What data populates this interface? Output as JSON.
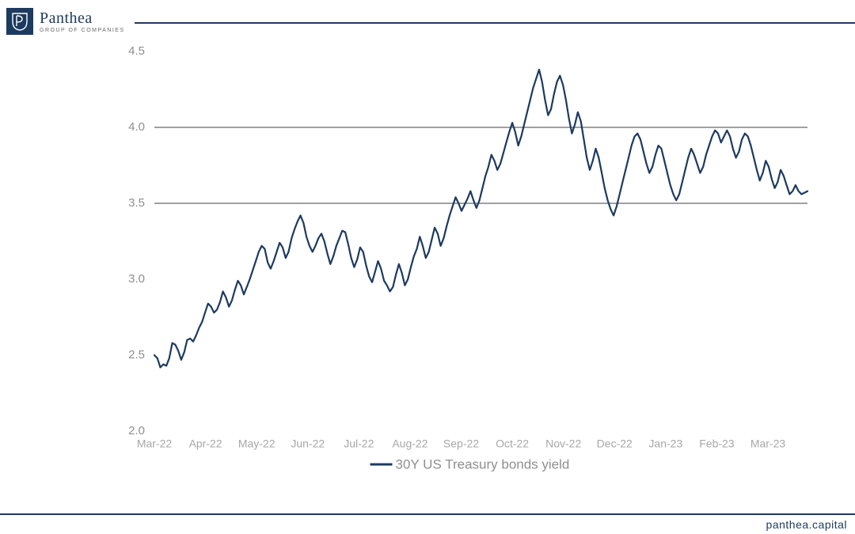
{
  "brand": {
    "name": "Panthea",
    "subtitle": "GROUP OF COMPANIES",
    "footer": "panthea.capital",
    "brand_color": "#1d3a5f"
  },
  "chart": {
    "type": "line",
    "series_name": "30Y US Treasury bonds yield",
    "line_color": "#1d3a5f",
    "line_width": 2.2,
    "background_color": "#ffffff",
    "axis_label_color": "#8f8f8f",
    "xaxis_label_color": "#a7a7a7",
    "reference_line_color": "#808080",
    "reference_line_width": 1.4,
    "ylim": [
      2.0,
      4.5
    ],
    "ytick_step": 0.5,
    "ytick_labels": [
      "2.0",
      "2.5",
      "3.0",
      "3.5",
      "4.0",
      "4.5"
    ],
    "reference_levels": [
      3.5,
      4.0
    ],
    "xtick_labels": [
      "Mar-22",
      "Apr-22",
      "May-22",
      "Jun-22",
      "Jul-22",
      "Aug-22",
      "Sep-22",
      "Oct-22",
      "Nov-22",
      "Dec-22",
      "Jan-23",
      "Feb-23",
      "Mar-23"
    ],
    "label_fontsize": 15,
    "legend_fontsize": 17,
    "data": [
      2.5,
      2.48,
      2.42,
      2.44,
      2.43,
      2.48,
      2.58,
      2.57,
      2.53,
      2.47,
      2.52,
      2.6,
      2.61,
      2.59,
      2.63,
      2.68,
      2.72,
      2.78,
      2.84,
      2.82,
      2.78,
      2.8,
      2.85,
      2.92,
      2.88,
      2.82,
      2.86,
      2.93,
      2.99,
      2.96,
      2.9,
      2.95,
      3.0,
      3.06,
      3.12,
      3.18,
      3.22,
      3.2,
      3.11,
      3.07,
      3.12,
      3.18,
      3.24,
      3.21,
      3.14,
      3.18,
      3.27,
      3.33,
      3.38,
      3.42,
      3.37,
      3.28,
      3.22,
      3.18,
      3.22,
      3.27,
      3.3,
      3.25,
      3.17,
      3.1,
      3.15,
      3.22,
      3.27,
      3.32,
      3.31,
      3.23,
      3.14,
      3.08,
      3.13,
      3.21,
      3.18,
      3.09,
      3.02,
      2.98,
      3.05,
      3.12,
      3.07,
      2.99,
      2.96,
      2.92,
      2.95,
      3.03,
      3.1,
      3.04,
      2.96,
      3.0,
      3.08,
      3.15,
      3.2,
      3.28,
      3.22,
      3.14,
      3.18,
      3.26,
      3.34,
      3.3,
      3.22,
      3.27,
      3.35,
      3.42,
      3.48,
      3.54,
      3.5,
      3.45,
      3.49,
      3.53,
      3.58,
      3.52,
      3.47,
      3.52,
      3.6,
      3.68,
      3.74,
      3.82,
      3.78,
      3.72,
      3.76,
      3.83,
      3.9,
      3.97,
      4.03,
      3.97,
      3.88,
      3.94,
      4.02,
      4.1,
      4.18,
      4.26,
      4.32,
      4.38,
      4.3,
      4.18,
      4.08,
      4.12,
      4.22,
      4.3,
      4.34,
      4.28,
      4.18,
      4.06,
      3.96,
      4.02,
      4.1,
      4.04,
      3.92,
      3.8,
      3.72,
      3.78,
      3.86,
      3.8,
      3.7,
      3.6,
      3.52,
      3.46,
      3.42,
      3.48,
      3.56,
      3.64,
      3.72,
      3.8,
      3.88,
      3.94,
      3.96,
      3.92,
      3.84,
      3.76,
      3.7,
      3.74,
      3.82,
      3.88,
      3.86,
      3.78,
      3.7,
      3.62,
      3.56,
      3.52,
      3.56,
      3.64,
      3.72,
      3.8,
      3.86,
      3.82,
      3.76,
      3.7,
      3.74,
      3.82,
      3.88,
      3.94,
      3.98,
      3.96,
      3.9,
      3.94,
      3.98,
      3.94,
      3.86,
      3.8,
      3.84,
      3.92,
      3.96,
      3.94,
      3.88,
      3.8,
      3.72,
      3.65,
      3.7,
      3.78,
      3.74,
      3.66,
      3.6,
      3.64,
      3.72,
      3.68,
      3.62,
      3.56,
      3.58,
      3.62,
      3.58,
      3.56,
      3.57,
      3.58
    ]
  }
}
